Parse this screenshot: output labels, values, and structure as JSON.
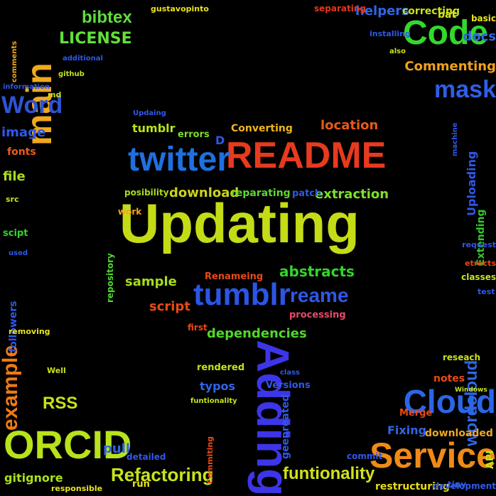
{
  "words": [
    {
      "id": "w0",
      "text": "Updating",
      "color": "#c4dc16"
    },
    {
      "id": "w1",
      "text": "README",
      "color": "#e83a1e"
    },
    {
      "id": "w2",
      "text": "twitter",
      "color": "#1f6fe0"
    },
    {
      "id": "w3",
      "text": "tumblr",
      "color": "#2b55e6"
    },
    {
      "id": "w4",
      "text": "Adding",
      "color": "#3d35e8"
    },
    {
      "id": "w5",
      "text": "Service",
      "color": "#f08a17"
    },
    {
      "id": "w6",
      "text": "ORCID",
      "color": "#b8e21a"
    },
    {
      "id": "w7",
      "text": "main",
      "color": "#f0a81c"
    },
    {
      "id": "w8",
      "text": "Code",
      "color": "#34d82c"
    },
    {
      "id": "w9",
      "text": "Cloud",
      "color": "#2b66e8"
    },
    {
      "id": "w10",
      "text": "mask",
      "color": "#2f5fe6"
    },
    {
      "id": "w11",
      "text": "Word",
      "color": "#2f53d6"
    },
    {
      "id": "w12",
      "text": "example",
      "color": "#f07a12"
    },
    {
      "id": "w13",
      "text": "Refactoring",
      "color": "#c8e41a"
    },
    {
      "id": "w14",
      "text": "funtionality",
      "color": "#d0e21a"
    },
    {
      "id": "w15",
      "text": "wordcloud",
      "color": "#2f66e6"
    },
    {
      "id": "w16",
      "text": "reame",
      "color": "#2f58e8"
    },
    {
      "id": "w17",
      "text": "abstracts",
      "color": "#34d42c"
    },
    {
      "id": "w18",
      "text": "extraction",
      "color": "#7ee028"
    },
    {
      "id": "w19",
      "text": "dependencies",
      "color": "#4fd82a"
    },
    {
      "id": "w20",
      "text": "bibtex",
      "color": "#5be03a"
    },
    {
      "id": "w21",
      "text": "LICENSE",
      "color": "#62e03a"
    },
    {
      "id": "w22",
      "text": "helpers",
      "color": "#2f66e6"
    },
    {
      "id": "w23",
      "text": "docs",
      "color": "#2f66e6"
    },
    {
      "id": "w24",
      "text": "Commenting",
      "color": "#f0a11c"
    },
    {
      "id": "w25",
      "text": "image",
      "color": "#2f58e8"
    },
    {
      "id": "w26",
      "text": "file",
      "color": "#a8dc1c"
    },
    {
      "id": "w27",
      "text": "fonts",
      "color": "#f05a1c"
    },
    {
      "id": "w28",
      "text": "Uploading",
      "color": "#2f58e8"
    },
    {
      "id": "w29",
      "text": "Extending",
      "color": "#34c82c"
    },
    {
      "id": "w30",
      "text": "location",
      "color": "#e85a16"
    },
    {
      "id": "w31",
      "text": "Converting",
      "color": "#f0b41c"
    },
    {
      "id": "w32",
      "text": "download",
      "color": "#c8d41a"
    },
    {
      "id": "w33",
      "text": "sample",
      "color": "#a8dc1c"
    },
    {
      "id": "w34",
      "text": "script",
      "color": "#e84a16"
    },
    {
      "id": "w35",
      "text": "tumblr",
      "color": "#b8e21a"
    },
    {
      "id": "w36",
      "text": "errors",
      "color": "#7edc28"
    },
    {
      "id": "w37",
      "text": "followers",
      "color": "#2f58e8"
    },
    {
      "id": "w38",
      "text": "RSS",
      "color": "#c8e21a"
    },
    {
      "id": "w39",
      "text": "gitignore",
      "color": "#a8e21a"
    },
    {
      "id": "w40",
      "text": "pull",
      "color": "#2f66e6"
    },
    {
      "id": "w41",
      "text": "Fixing",
      "color": "#2f66e6"
    },
    {
      "id": "w42",
      "text": "geenreated",
      "color": "#2f58e8"
    },
    {
      "id": "w43",
      "text": "restructuring",
      "color": "#e8dc1a"
    },
    {
      "id": "w44",
      "text": "Merge",
      "color": "#e84a16"
    },
    {
      "id": "w45",
      "text": "notes",
      "color": "#e84a16"
    },
    {
      "id": "w46",
      "text": "typos",
      "color": "#2f66e6"
    },
    {
      "id": "w47",
      "text": "Versions",
      "color": "#2f58e8"
    },
    {
      "id": "w48",
      "text": "processing",
      "color": "#e84a6a"
    },
    {
      "id": "w49",
      "text": "Renameing",
      "color": "#e84a16"
    },
    {
      "id": "w50",
      "text": "reparating",
      "color": "#5ad82c"
    },
    {
      "id": "w51",
      "text": "patch",
      "color": "#2f58e8"
    },
    {
      "id": "w52",
      "text": "posibility",
      "color": "#a8dc1c"
    },
    {
      "id": "w53",
      "text": "repository",
      "color": "#4fd82a"
    },
    {
      "id": "w54",
      "text": "work",
      "color": "#f0a81c"
    },
    {
      "id": "w55",
      "text": "D",
      "color": "#2f58e8"
    },
    {
      "id": "w56",
      "text": "Updaing",
      "color": "#2f58e8"
    },
    {
      "id": "w57",
      "text": "rendered",
      "color": "#c8e21a"
    },
    {
      "id": "w58",
      "text": "class",
      "color": "#2f58e8"
    },
    {
      "id": "w59",
      "text": "funtionality",
      "color": "#c8e21a"
    },
    {
      "id": "w60",
      "text": "Commiting",
      "color": "#e84a16"
    },
    {
      "id": "w61",
      "text": "first",
      "color": "#e84a16"
    },
    {
      "id": "w62",
      "text": "commit",
      "color": "#2f58e8"
    },
    {
      "id": "w63",
      "text": "downloaded",
      "color": "#f0a81c"
    },
    {
      "id": "w64",
      "text": "API",
      "color": "#c8e21a"
    },
    {
      "id": "w65",
      "text": "tiny",
      "color": "#2f58e8"
    },
    {
      "id": "w66",
      "text": "development",
      "color": "#2f58e8"
    },
    {
      "id": "w67",
      "text": "bat",
      "color": "#d8e41a"
    },
    {
      "id": "w68",
      "text": "basic",
      "color": "#e8e41a"
    },
    {
      "id": "w69",
      "text": "correcting",
      "color": "#c8e21a"
    },
    {
      "id": "w70",
      "text": "separating",
      "color": "#e8361a"
    },
    {
      "id": "w71",
      "text": "installing",
      "color": "#2f58e8"
    },
    {
      "id": "w72",
      "text": "also",
      "color": "#c8e21a"
    },
    {
      "id": "w73",
      "text": "machine",
      "color": "#2f58e8"
    },
    {
      "id": "w74",
      "text": "request",
      "color": "#2f58e8"
    },
    {
      "id": "w75",
      "text": "etracts",
      "color": "#e84a16"
    },
    {
      "id": "w76",
      "text": "classes",
      "color": "#c8e21a"
    },
    {
      "id": "w77",
      "text": "test",
      "color": "#2f58e8"
    },
    {
      "id": "w78",
      "text": "reseach",
      "color": "#c8e21a"
    },
    {
      "id": "w79",
      "text": "Windows",
      "color": "#c8e21a"
    },
    {
      "id": "w80",
      "text": "comments",
      "color": "#f0a81c"
    },
    {
      "id": "w81",
      "text": "gustavopinto",
      "color": "#e8e41a"
    },
    {
      "id": "w82",
      "text": "additional",
      "color": "#2f58e8"
    },
    {
      "id": "w83",
      "text": "github",
      "color": "#c8e21a"
    },
    {
      "id": "w84",
      "text": "information",
      "color": "#2f58e8"
    },
    {
      "id": "w85",
      "text": "md",
      "color": "#c8e21a"
    },
    {
      "id": "w86",
      "text": "src",
      "color": "#c8e21a"
    },
    {
      "id": "w87",
      "text": "scipt",
      "color": "#34d42c"
    },
    {
      "id": "w88",
      "text": "used",
      "color": "#2f58e8"
    },
    {
      "id": "w89",
      "text": "removing",
      "color": "#e8e41a"
    },
    {
      "id": "w90",
      "text": "Well",
      "color": "#c8e21a"
    },
    {
      "id": "w91",
      "text": "detailed",
      "color": "#2f58e8"
    },
    {
      "id": "w92",
      "text": "responsible",
      "color": "#e8e41a"
    },
    {
      "id": "w93",
      "text": "run",
      "color": "#e8e41a"
    }
  ]
}
